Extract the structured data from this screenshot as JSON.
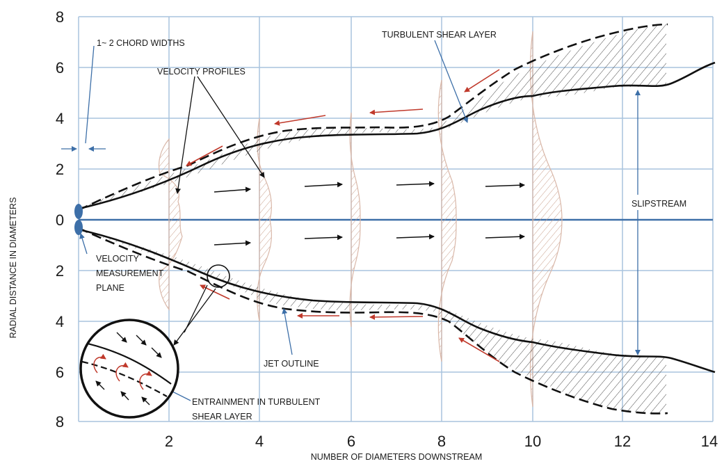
{
  "diagram": {
    "x_axis": {
      "label": "NUMBER OF DIAMETERS DOWNSTREAM",
      "ticks": [
        "2",
        "4",
        "6",
        "8",
        "10",
        "12",
        "14"
      ]
    },
    "y_axis": {
      "label": "RADIAL DISTANCE IN DIAMETERS",
      "ticks": [
        "8",
        "6",
        "4",
        "2",
        "0",
        "2",
        "4",
        "6",
        "8"
      ]
    },
    "labels": {
      "chord": "1~ 2 CHORD WIDTHS",
      "velocity_profiles": "VELOCITY PROFILES",
      "turbulent_shear": "TURBULENT SHEAR LAYER",
      "slipstream": "SLIPSTREAM",
      "vmp_1": "VELOCITY",
      "vmp_2": "MEASUREMENT",
      "vmp_3": "PLANE",
      "jet_outline": "JET OUTLINE",
      "entrain_1": "ENTRAINMENT IN TURBULENT",
      "entrain_2": "SHEAR LAYER"
    },
    "colors": {
      "grid": "#a9c4de",
      "centerline": "#3d6fa8",
      "outline": "#111111",
      "profile": "#d9b7a8",
      "hatch": "#555555",
      "red_arrow": "#c0392b",
      "blue_arrow": "#3d6fa8"
    }
  }
}
